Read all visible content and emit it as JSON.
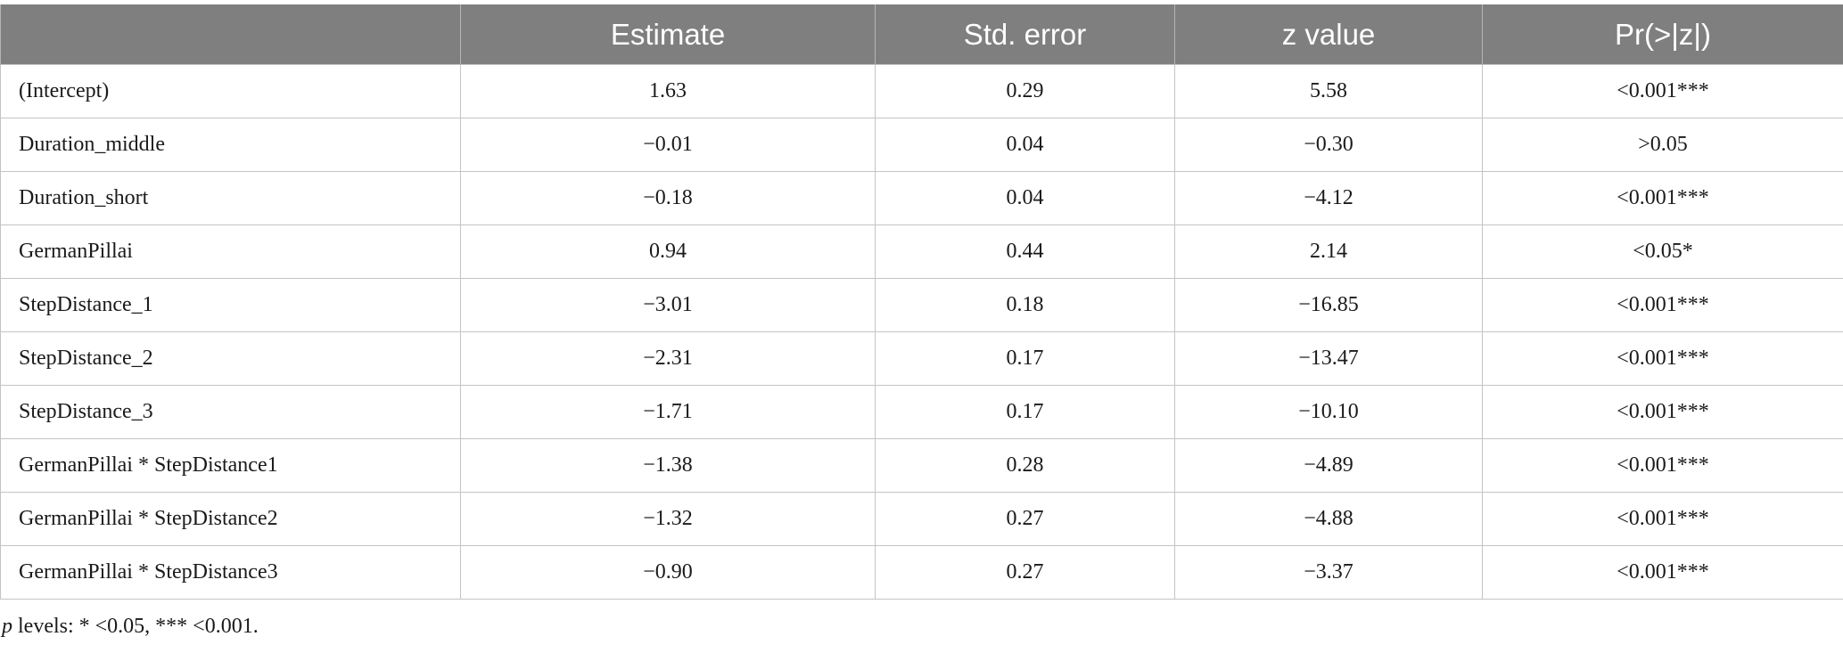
{
  "table": {
    "headers": [
      "",
      "Estimate",
      "Std. error",
      "z value",
      "Pr(>|z|)"
    ],
    "rows": [
      [
        "(Intercept)",
        "1.63",
        "0.29",
        "5.58",
        "<0.001***"
      ],
      [
        "Duration_middle",
        "−0.01",
        "0.04",
        "−0.30",
        ">0.05"
      ],
      [
        "Duration_short",
        "−0.18",
        "0.04",
        "−4.12",
        "<0.001***"
      ],
      [
        "GermanPillai",
        "0.94",
        "0.44",
        "2.14",
        "<0.05*"
      ],
      [
        "StepDistance_1",
        "−3.01",
        "0.18",
        "−16.85",
        "<0.001***"
      ],
      [
        "StepDistance_2",
        "−2.31",
        "0.17",
        "−13.47",
        "<0.001***"
      ],
      [
        "StepDistance_3",
        "−1.71",
        "0.17",
        "−10.10",
        "<0.001***"
      ],
      [
        "GermanPillai * StepDistance1",
        "−1.38",
        "0.28",
        "−4.89",
        "<0.001***"
      ],
      [
        "GermanPillai * StepDistance2",
        "−1.32",
        "0.27",
        "−4.88",
        "<0.001***"
      ],
      [
        "GermanPillai * StepDistance3",
        "−0.90",
        "0.27",
        "−3.37",
        "<0.001***"
      ]
    ]
  },
  "footnote": {
    "p_symbol": "p",
    "text": " levels: * <0.05, *** <0.001."
  },
  "colors": {
    "header_background": "#7f7f7f",
    "header_text": "#ffffff",
    "grid_line": "#c4c4c4"
  }
}
